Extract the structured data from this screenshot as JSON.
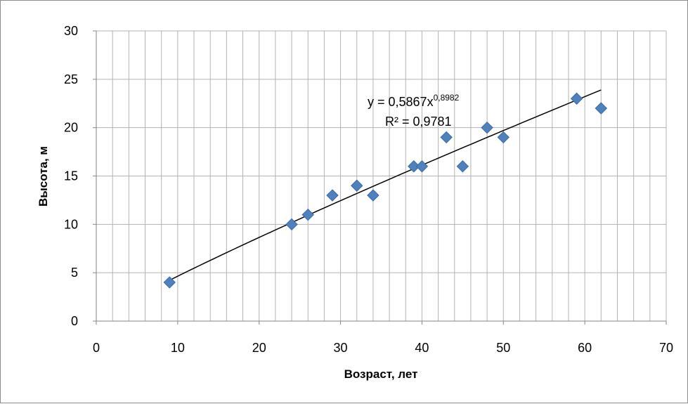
{
  "chart_data": {
    "type": "scatter",
    "title": "",
    "xlabel": "Возраст, лет",
    "ylabel": "Высота, м",
    "xlim": [
      0,
      70
    ],
    "ylim": [
      0,
      30
    ],
    "x_major_ticks": [
      0,
      10,
      20,
      30,
      40,
      50,
      60,
      70
    ],
    "y_major_ticks": [
      0,
      5,
      10,
      15,
      20,
      25,
      30
    ],
    "x_tick_labels": [
      "0",
      "10",
      "20",
      "30",
      "40",
      "50",
      "60",
      "70"
    ],
    "y_tick_labels": [
      "0",
      "5",
      "10",
      "15",
      "20",
      "25",
      "30"
    ],
    "grid": true,
    "legend": "none",
    "series": [
      {
        "marker": "diamond",
        "color": "#4f81bd",
        "x": [
          9,
          24,
          26,
          29,
          32,
          34,
          39,
          40,
          43,
          45,
          48,
          50,
          59,
          62
        ],
        "y": [
          4,
          10,
          11,
          13,
          14,
          13,
          16,
          16,
          19,
          16,
          20,
          19,
          23,
          22
        ]
      }
    ],
    "trendline": {
      "type": "power",
      "a": 0.5867,
      "b": 0.8982,
      "x_range": [
        9,
        62
      ],
      "color": "#000000",
      "equation_base": "y = 0,5867x",
      "equation_exponent": "0,8982",
      "r_squared": "R² = 0,9781"
    }
  }
}
